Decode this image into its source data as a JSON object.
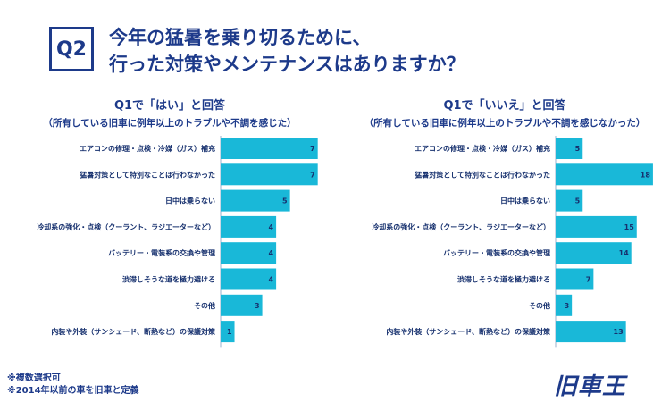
{
  "header": {
    "badge": "Q2",
    "title_line1": "今年の猛暑を乗り切るために、",
    "title_line2": "行った対策やメンテナンスはありますか？"
  },
  "chart_data": [
    {
      "type": "bar",
      "orientation": "horizontal",
      "title": "Q1で「はい」と回答",
      "subtitle": "（所有している旧車に例年以上のトラブルや不調を感じた）",
      "categories": [
        "エアコンの修理・点検・冷媒（ガス）補充",
        "猛暑対策として特別なことは行わなかった",
        "日中は乗らない",
        "冷却系の強化・点検（クーラント、ラジエーターなど）",
        "バッテリー・電装系の交換や管理",
        "渋滞しそうな道を極力避ける",
        "その他",
        "内装や外装（サンシェード、断熱など）の保護対策"
      ],
      "values": [
        7,
        7,
        5,
        4,
        4,
        4,
        3,
        1
      ],
      "xlim": [
        0,
        7.6
      ],
      "color": "#19b8d8"
    },
    {
      "type": "bar",
      "orientation": "horizontal",
      "title": "Q1で「いいえ」と回答",
      "subtitle": "（所有している旧車に例年以上のトラブルや不調を感じなかった）",
      "categories": [
        "エアコンの修理・点検・冷媒（ガス）補充",
        "猛暑対策として特別なことは行わなかった",
        "日中は乗らない",
        "冷却系の強化・点検（クーラント、ラジエーターなど）",
        "バッテリー・電装系の交換や管理",
        "渋滞しそうな道を極力避ける",
        "その他",
        "内装や外装（サンシェード、断熱など）の保護対策"
      ],
      "values": [
        5,
        18,
        5,
        15,
        14,
        7,
        3,
        13
      ],
      "xlim": [
        0,
        19.5
      ],
      "color": "#19b8d8"
    }
  ],
  "footnotes": {
    "note1": "※複数選択可",
    "note2": "※2014年以前の車を旧車と定義"
  },
  "logo": "旧車王"
}
